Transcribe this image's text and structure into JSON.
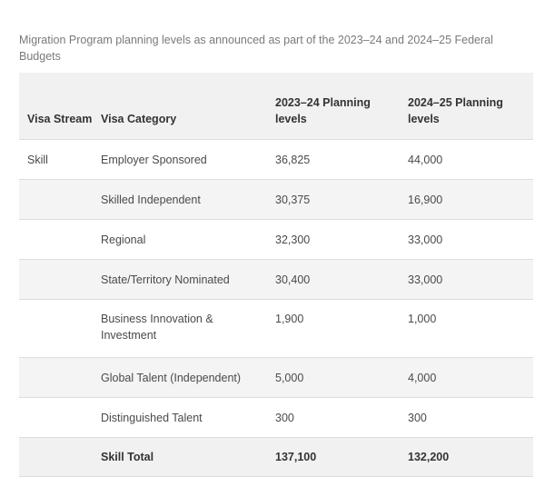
{
  "caption": "Migration Program planning levels as announced as part of the 2023–24 and 2024–25 Federal Budgets",
  "table": {
    "headers": {
      "visa_stream": "Visa Stream",
      "visa_category": "Visa Category",
      "planning_2023_24": "2023–24 Planning levels",
      "planning_2024_25": "2024–25 Planning levels"
    },
    "rows": [
      {
        "stream": "Skill",
        "category": "Employer Sponsored",
        "y2023_24": "36,825",
        "y2024_25": "44,000"
      },
      {
        "stream": "",
        "category": "Skilled Independent",
        "y2023_24": "30,375",
        "y2024_25": "16,900"
      },
      {
        "stream": "",
        "category": "Regional",
        "y2023_24": "32,300",
        "y2024_25": "33,000"
      },
      {
        "stream": "",
        "category": "State/Territory Nominated",
        "y2023_24": "30,400",
        "y2024_25": "33,000"
      },
      {
        "stream": "",
        "category": "Business Innovation & Investment",
        "y2023_24": "1,900",
        "y2024_25": "1,000"
      },
      {
        "stream": "",
        "category": "Global Talent (Independent)",
        "y2023_24": "5,000",
        "y2024_25": "4,000"
      },
      {
        "stream": "",
        "category": "Distinguished Talent",
        "y2023_24": "300",
        "y2024_25": "300"
      }
    ],
    "total": {
      "stream": "",
      "category": "Skill Total",
      "y2023_24": "137,100",
      "y2024_25": "132,200"
    }
  }
}
